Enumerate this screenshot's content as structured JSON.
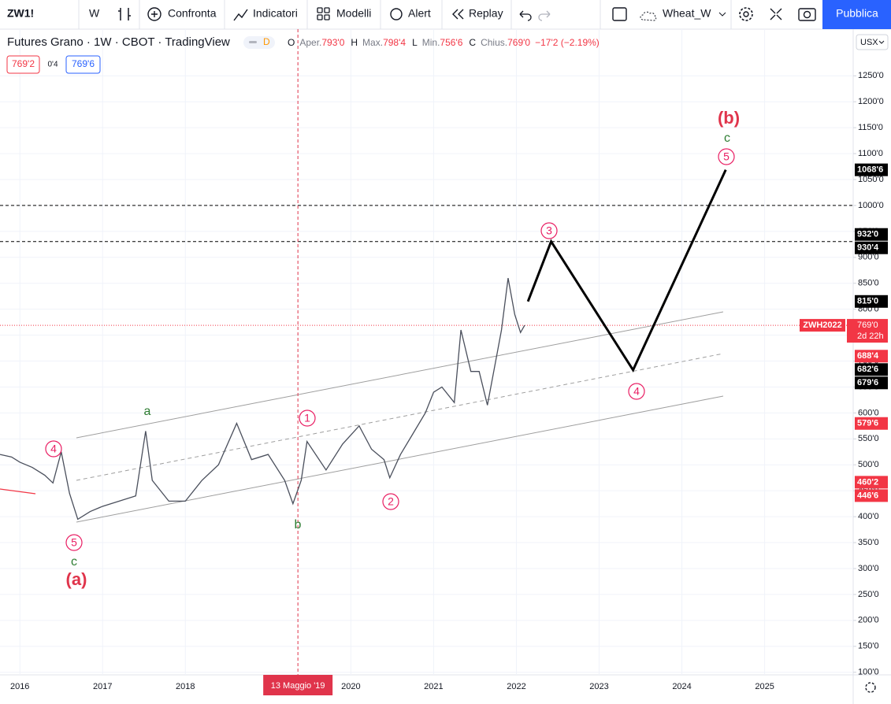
{
  "toolbar": {
    "symbol": "ZW1!",
    "interval": "W",
    "compare": "Confronta",
    "indicators": "Indicatori",
    "templates": "Modelli",
    "alert": "Alert",
    "replay": "Replay",
    "layout": "Wheat_W",
    "publish": "Pubblica"
  },
  "chart_data": {
    "type": "line",
    "title": "Futures Grano · 1W · CBOT · TradingView",
    "badge": "D",
    "ohlc": [
      {
        "letter": "O",
        "name": "Aper.",
        "value": "793'0"
      },
      {
        "letter": "H",
        "name": "Max.",
        "value": "798'4"
      },
      {
        "letter": "L",
        "name": "Min.",
        "value": "756'6"
      },
      {
        "letter": "C",
        "name": "Chius.",
        "value": "769'0"
      }
    ],
    "change": "−17'2 (−2.19%)",
    "bid": "769'2",
    "spread": "0'4",
    "ask": "769'6",
    "currency": "USX",
    "color": "#4a4f5c",
    "x": [
      2015.76,
      2015.9,
      2016.0,
      2016.15,
      2016.3,
      2016.4,
      2016.5,
      2016.6,
      2016.7,
      2016.85,
      2017.0,
      2017.2,
      2017.4,
      2017.52,
      2017.6,
      2017.8,
      2018.0,
      2018.2,
      2018.4,
      2018.62,
      2018.8,
      2019.0,
      2019.2,
      2019.3,
      2019.4,
      2019.47,
      2019.7,
      2019.9,
      2020.1,
      2020.25,
      2020.4,
      2020.47,
      2020.6,
      2020.75,
      2020.9,
      2021.0,
      2021.1,
      2021.25,
      2021.33,
      2021.45,
      2021.55,
      2021.65,
      2021.75,
      2021.82,
      2021.9,
      2021.98,
      2022.05,
      2022.1
    ],
    "values": [
      520,
      515,
      505,
      495,
      480,
      465,
      525,
      445,
      395,
      410,
      420,
      430,
      440,
      565,
      470,
      430,
      430,
      470,
      500,
      580,
      510,
      520,
      470,
      425,
      470,
      545,
      490,
      540,
      575,
      530,
      510,
      475,
      520,
      560,
      600,
      640,
      650,
      620,
      760,
      680,
      680,
      615,
      700,
      760,
      860,
      790,
      755,
      769
    ],
    "xlim": [
      2015.76,
      2026.07
    ],
    "xticks": [
      2016,
      2017,
      2018,
      2020,
      2021,
      2022,
      2023,
      2024,
      2025
    ],
    "ylim": [
      95,
      1340
    ],
    "yticks": [
      {
        "value": 100,
        "label": "100'0"
      },
      {
        "value": 150,
        "label": "150'0"
      },
      {
        "value": 200,
        "label": "200'0"
      },
      {
        "value": 250,
        "label": "250'0"
      },
      {
        "value": 300,
        "label": "300'0"
      },
      {
        "value": 350,
        "label": "350'0"
      },
      {
        "value": 400,
        "label": "400'0"
      },
      {
        "value": 450,
        "label": "450'0"
      },
      {
        "value": 500,
        "label": "500'0"
      },
      {
        "value": 550,
        "label": "550'0"
      },
      {
        "value": 600,
        "label": "600'0"
      },
      {
        "value": 650,
        "label": "650'0"
      },
      {
        "value": 700,
        "label": "700'0"
      },
      {
        "value": 750,
        "label": "750'0"
      },
      {
        "value": 800,
        "label": "800'0"
      },
      {
        "value": 850,
        "label": "850'0"
      },
      {
        "value": 900,
        "label": "900'0"
      },
      {
        "value": 950,
        "label": "950'0"
      },
      {
        "value": 1000,
        "label": "1000'0"
      },
      {
        "value": 1050,
        "label": "1050'0"
      },
      {
        "value": 1100,
        "label": "1100'0"
      },
      {
        "value": 1150,
        "label": "1150'0"
      },
      {
        "value": 1200,
        "label": "1200'0"
      },
      {
        "value": 1250,
        "label": "1250'0"
      }
    ],
    "grid": true,
    "horizontal_lines": [
      1000,
      930.5
    ],
    "projection": {
      "color": "#000000",
      "x": [
        2022.14,
        2022.42,
        2023.41,
        2024.53
      ],
      "values": [
        815,
        930.5,
        682.75,
        1068.75
      ]
    },
    "current_price": {
      "symbol": "ZWH2022",
      "value": 769,
      "label": "769'0",
      "countdown": "2d 22h",
      "color": "#f23645"
    },
    "price_labels": [
      {
        "value": 1068.75,
        "label": "1068'6",
        "color": "#000000"
      },
      {
        "value": 932,
        "label": "932'0",
        "color": "#000000"
      },
      {
        "value": 930.5,
        "label": "930'4",
        "color": "#000000"
      },
      {
        "value": 815,
        "label": "815'0",
        "color": "#000000"
      },
      {
        "value": 688.5,
        "label": "688'4",
        "color": "#f23645"
      },
      {
        "value": 682.75,
        "label": "682'6",
        "color": "#000000"
      },
      {
        "value": 679.75,
        "label": "679'6",
        "color": "#000000"
      },
      {
        "value": 579.75,
        "label": "579'6",
        "color": "#f23645"
      },
      {
        "value": 460.25,
        "label": "460'2",
        "color": "#f23645"
      },
      {
        "value": 446.75,
        "label": "446'6",
        "color": "#f23645"
      }
    ],
    "crosshair": {
      "x": 2019.36,
      "label": "13 Maggio '19",
      "color": "#e0344b"
    },
    "wave_labels": [
      {
        "text": "(b)",
        "color": "#e0344b",
        "circled": false
      },
      {
        "text": "c",
        "color": "#2e7d32",
        "circled": false
      },
      {
        "text": "5",
        "color": "#e91e63",
        "circled": true
      },
      {
        "text": "3",
        "color": "#e91e63",
        "circled": true
      },
      {
        "text": "4",
        "color": "#e91e63",
        "circled": true
      },
      {
        "text": "1",
        "color": "#e91e63",
        "circled": true
      },
      {
        "text": "2",
        "color": "#e91e63",
        "circled": true
      },
      {
        "text": "a",
        "color": "#2e7d32",
        "circled": false
      },
      {
        "text": "b",
        "color": "#2e7d32",
        "circled": false
      },
      {
        "text": "4",
        "color": "#e91e63",
        "circled": true
      },
      {
        "text": "5",
        "color": "#e91e63",
        "circled": true
      },
      {
        "text": "c",
        "color": "#2e7d32",
        "circled": false
      },
      {
        "text": "(a)",
        "color": "#e0344b",
        "circled": false
      }
    ]
  }
}
